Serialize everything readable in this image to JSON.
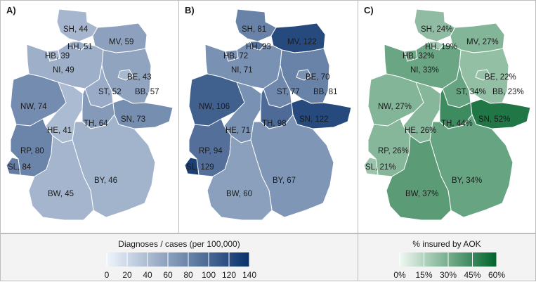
{
  "figure": {
    "panels": [
      {
        "letter": "A)",
        "scale": "blues_a",
        "states": [
          {
            "code": "SH",
            "label": "SH, 44",
            "value": 44
          },
          {
            "code": "HH",
            "label": "HH, 51",
            "value": 51
          },
          {
            "code": "MV",
            "label": "MV, 59",
            "value": 59
          },
          {
            "code": "HB",
            "label": "HB, 39",
            "value": 39
          },
          {
            "code": "NI",
            "label": "NI, 49",
            "value": 49
          },
          {
            "code": "BE",
            "label": "BE, 43",
            "value": 43
          },
          {
            "code": "ST",
            "label": "ST, 52",
            "value": 52
          },
          {
            "code": "BB",
            "label": "BB, 57",
            "value": 57
          },
          {
            "code": "NW",
            "label": "NW, 74",
            "value": 74
          },
          {
            "code": "TH",
            "label": "TH, 64",
            "value": 64
          },
          {
            "code": "SN",
            "label": "SN, 73",
            "value": 73
          },
          {
            "code": "HE",
            "label": "HE, 41",
            "value": 41
          },
          {
            "code": "RP",
            "label": "RP, 80",
            "value": 80
          },
          {
            "code": "SL",
            "label": "SL, 84",
            "value": 84
          },
          {
            "code": "BY",
            "label": "BY, 46",
            "value": 46
          },
          {
            "code": "BW",
            "label": "BW, 45",
            "value": 45
          }
        ]
      },
      {
        "letter": "B)",
        "scale": "blues_b",
        "states": [
          {
            "code": "SH",
            "label": "SH, 81",
            "value": 81
          },
          {
            "code": "HH",
            "label": "HH, 93",
            "value": 93
          },
          {
            "code": "MV",
            "label": "MV, 122",
            "value": 122
          },
          {
            "code": "HB",
            "label": "HB, 72",
            "value": 72
          },
          {
            "code": "NI",
            "label": "NI, 71",
            "value": 71
          },
          {
            "code": "BE",
            "label": "BE, 70",
            "value": 70
          },
          {
            "code": "ST",
            "label": "ST, 77",
            "value": 77
          },
          {
            "code": "BB",
            "label": "BB, 81",
            "value": 81
          },
          {
            "code": "NW",
            "label": "NW, 106",
            "value": 106
          },
          {
            "code": "TH",
            "label": "TH, 98",
            "value": 98
          },
          {
            "code": "SN",
            "label": "SN, 122",
            "value": 122
          },
          {
            "code": "HE",
            "label": "HE, 71",
            "value": 71
          },
          {
            "code": "RP",
            "label": "RP, 94",
            "value": 94
          },
          {
            "code": "SL",
            "label": "SL, 129",
            "value": 129
          },
          {
            "code": "BY",
            "label": "BY, 67",
            "value": 67
          },
          {
            "code": "BW",
            "label": "BW, 60",
            "value": 60
          }
        ]
      },
      {
        "letter": "C)",
        "scale": "greens",
        "states": [
          {
            "code": "SH",
            "label": "SH, 24%",
            "value": 24
          },
          {
            "code": "HH",
            "label": "HH, 19%",
            "value": 19
          },
          {
            "code": "MV",
            "label": "MV, 27%",
            "value": 27
          },
          {
            "code": "HB",
            "label": "HB, 32%",
            "value": 32
          },
          {
            "code": "NI",
            "label": "NI, 33%",
            "value": 33
          },
          {
            "code": "BE",
            "label": "BE, 22%",
            "value": 22
          },
          {
            "code": "ST",
            "label": "ST, 34%",
            "value": 34
          },
          {
            "code": "BB",
            "label": "BB, 23%",
            "value": 23
          },
          {
            "code": "NW",
            "label": "NW, 27%",
            "value": 27
          },
          {
            "code": "TH",
            "label": "TH, 44%",
            "value": 44
          },
          {
            "code": "SN",
            "label": "SN, 52%",
            "value": 52
          },
          {
            "code": "HE",
            "label": "HE, 26%",
            "value": 26
          },
          {
            "code": "RP",
            "label": "RP, 26%",
            "value": 26
          },
          {
            "code": "SL",
            "label": "SL, 21%",
            "value": 21
          },
          {
            "code": "BY",
            "label": "BY, 34%",
            "value": 34
          },
          {
            "code": "BW",
            "label": "BW, 37%",
            "value": 37
          }
        ]
      }
    ],
    "legends": {
      "cases": {
        "title": "Diagnoses / cases (per 100,000)",
        "ticks": [
          "0",
          "20",
          "40",
          "60",
          "80",
          "100",
          "120",
          "140"
        ],
        "range": [
          0,
          140
        ]
      },
      "insured": {
        "title": "% insured by AOK",
        "ticks": [
          "0%",
          "15%",
          "30%",
          "45%",
          "60%"
        ],
        "range": [
          0,
          60
        ]
      }
    },
    "colors": {
      "blue_low": "#eef4fb",
      "blue_high": "#08306b",
      "green_low": "#eef8f1",
      "green_high": "#00632b",
      "border": "#bdbdbd",
      "legend_bg": "#f3f3f3"
    }
  }
}
